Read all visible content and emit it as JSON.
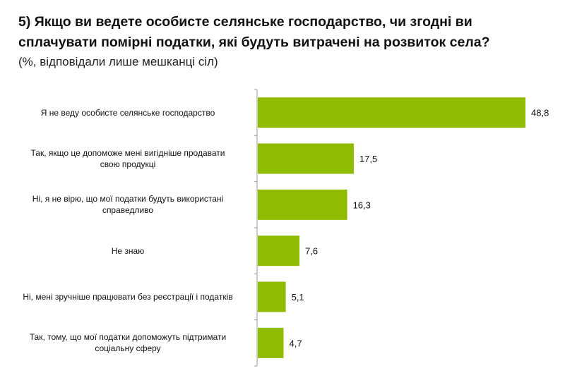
{
  "chart_data": {
    "type": "bar",
    "title": [
      "5) Якщо ви ведете особисте селянське господарство, чи згодні ви",
      "сплачувати помірні податки, які будуть витрачені на розвиток села?"
    ],
    "subtitle": "(%, відповідали лише мешканці сіл)",
    "categories": [
      "Я не веду особисте селянське господарство",
      "Так, якщо це допоможе мені вигідніше продавати свою продукці",
      "Ні, я не вірю, що мої податки будуть використані справедливо",
      "Не знаю",
      "Ні, мені зручніше працювати без реєстрації і податків",
      "Так, тому, що мої податки допоможуть підтримати соціальну сферу"
    ],
    "values": [
      48.8,
      17.5,
      16.3,
      7.6,
      5.1,
      4.7
    ],
    "value_labels": [
      "48,8",
      "17,5",
      "16,3",
      "7,6",
      "5,1",
      "4,7"
    ],
    "xlabel": "",
    "ylabel": "",
    "xlim": [
      0,
      48.8
    ],
    "grid": false,
    "bar_color": "#8fbc00",
    "orientation": "horizontal"
  }
}
